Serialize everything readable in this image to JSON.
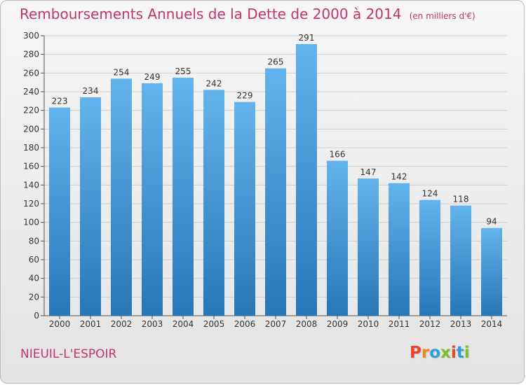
{
  "header": {
    "title": "Remboursements Annuels de la Dette de 2000 à 2014",
    "unit": "(en milliers d'€)"
  },
  "footer": {
    "commune": "NIEUIL-L'ESPOIR",
    "logo_text": "Proxiti",
    "logo_colors": [
      "#e8452c",
      "#f08a1c",
      "#2d9fdb",
      "#7fbf2a",
      "#e8452c",
      "#2d9fdb",
      "#7fbf2a"
    ]
  },
  "colors": {
    "bar_top": "#63b3ec",
    "bar_bottom": "#2776b8",
    "title": "#c2346e",
    "axis": "#555555",
    "grid": "#cfcfcf"
  },
  "chart_data": {
    "type": "bar",
    "title": "Remboursements Annuels de la Dette de 2000 à 2014",
    "xlabel": "",
    "ylabel": "",
    "categories": [
      "2000",
      "2001",
      "2002",
      "2003",
      "2004",
      "2005",
      "2006",
      "2007",
      "2008",
      "2009",
      "2010",
      "2011",
      "2012",
      "2013",
      "2014"
    ],
    "values": [
      223,
      234,
      254,
      249,
      255,
      242,
      229,
      265,
      291,
      166,
      147,
      142,
      124,
      118,
      94
    ],
    "ylim": [
      0,
      300
    ],
    "yticks": [
      0,
      20,
      40,
      60,
      80,
      100,
      120,
      140,
      160,
      180,
      200,
      220,
      240,
      260,
      280,
      300
    ],
    "grid": true,
    "data_labels": true
  }
}
